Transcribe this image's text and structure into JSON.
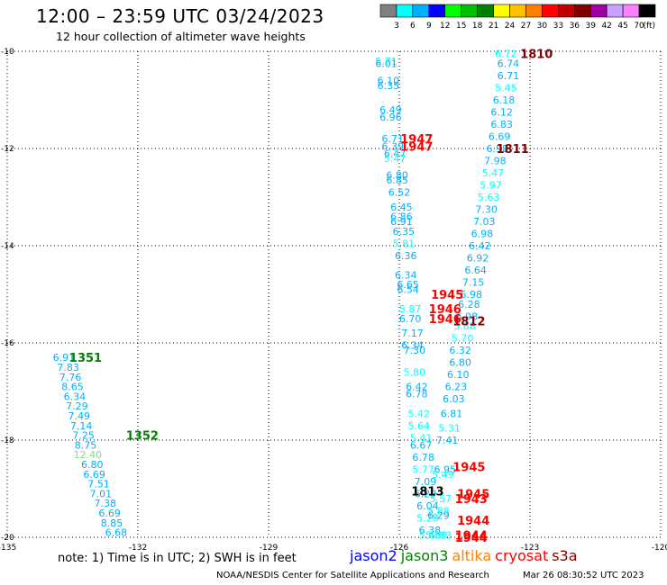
{
  "header": {
    "title": "12:00 – 23:59 UTC 03/24/2023",
    "subtitle": "12 hour collection of altimeter wave heights"
  },
  "colorbar": {
    "unit": "(ft)",
    "bins": [
      {
        "label": "3",
        "color": "#808080"
      },
      {
        "label": "6",
        "color": "#00ffff"
      },
      {
        "label": "9",
        "color": "#00b0ff"
      },
      {
        "label": "12",
        "color": "#0000ff"
      },
      {
        "label": "15",
        "color": "#00ff00"
      },
      {
        "label": "18",
        "color": "#00c000"
      },
      {
        "label": "21",
        "color": "#008000"
      },
      {
        "label": "24",
        "color": "#ffff00"
      },
      {
        "label": "27",
        "color": "#ffc000"
      },
      {
        "label": "30",
        "color": "#ff8000"
      },
      {
        "label": "33",
        "color": "#ff0000"
      },
      {
        "label": "36",
        "color": "#c00000"
      },
      {
        "label": "39",
        "color": "#800000"
      },
      {
        "label": "42",
        "color": "#a000a0"
      },
      {
        "label": "45",
        "color": "#c8a0ff"
      },
      {
        "label": "70",
        "color": "#ff80ff"
      },
      {
        "label": "",
        "color": "#000000"
      }
    ]
  },
  "footer": {
    "note": "note:  1) Time is in UTC;  2) SWH is in feet",
    "satellites": [
      {
        "name": "jason2",
        "color": "#0000ff"
      },
      {
        "name": "jason3",
        "color": "#008000"
      },
      {
        "name": "altika",
        "color": "#ff8000"
      },
      {
        "name": "cryosat",
        "color": "#ff0000"
      },
      {
        "name": "s3a",
        "color": "#800000"
      }
    ],
    "credit": "NOAA/NESDIS Center for Satellite Applications and Research",
    "timestamp": "Mar 26 08:30:52 UTC 2023"
  },
  "chart_data": {
    "type": "scatter",
    "xlim": [
      -135,
      -120
    ],
    "ylim": [
      -20,
      -10
    ],
    "xticks": [
      -135,
      -132,
      -129,
      -126,
      -123,
      -120
    ],
    "xtick_labels": [
      "-135",
      "-132",
      "-129",
      "-126",
      "-123",
      "-120"
    ],
    "yticks": [
      -10,
      -12,
      -14,
      -16,
      -18,
      -20
    ],
    "ytick_labels": [
      "-10",
      "-12",
      "-14",
      "-16",
      "-18",
      "-20"
    ],
    "grid": true,
    "wave_heights": [
      {
        "x": -133.7,
        "y": -16.3,
        "value": "6.91",
        "color": "#00b0ff"
      },
      {
        "x": -133.6,
        "y": -16.5,
        "value": "7.83",
        "color": "#00b0ff"
      },
      {
        "x": -133.55,
        "y": -16.7,
        "value": "7.76",
        "color": "#00b0ff"
      },
      {
        "x": -133.5,
        "y": -16.9,
        "value": "8.65",
        "color": "#00b0ff"
      },
      {
        "x": -133.45,
        "y": -17.1,
        "value": "6.34",
        "color": "#00b0ff"
      },
      {
        "x": -133.4,
        "y": -17.3,
        "value": "7.29",
        "color": "#00b0ff"
      },
      {
        "x": -133.35,
        "y": -17.5,
        "value": "7.49",
        "color": "#00b0ff"
      },
      {
        "x": -133.3,
        "y": -17.7,
        "value": "7.14",
        "color": "#00b0ff"
      },
      {
        "x": -133.25,
        "y": -17.9,
        "value": "7.25",
        "color": "#00b0ff"
      },
      {
        "x": -133.2,
        "y": -18.1,
        "value": "8.75",
        "color": "#00b0ff"
      },
      {
        "x": -133.15,
        "y": -18.3,
        "value": "12.40",
        "color": "#80e080"
      },
      {
        "x": -133.05,
        "y": -18.5,
        "value": "6.80",
        "color": "#00b0ff"
      },
      {
        "x": -133.0,
        "y": -18.7,
        "value": "6.69",
        "color": "#00b0ff"
      },
      {
        "x": -132.9,
        "y": -18.9,
        "value": "7.51",
        "color": "#00b0ff"
      },
      {
        "x": -132.85,
        "y": -19.1,
        "value": "7.01",
        "color": "#00b0ff"
      },
      {
        "x": -132.75,
        "y": -19.3,
        "value": "7.38",
        "color": "#00b0ff"
      },
      {
        "x": -132.65,
        "y": -19.5,
        "value": "6.69",
        "color": "#00b0ff"
      },
      {
        "x": -132.6,
        "y": -19.7,
        "value": "8.85",
        "color": "#00b0ff"
      },
      {
        "x": -132.5,
        "y": -19.9,
        "value": "6.68",
        "color": "#00b0ff"
      },
      {
        "x": -126.3,
        "y": -10.2,
        "value": "5.71",
        "color": "#00ffff"
      },
      {
        "x": -126.3,
        "y": -10.25,
        "value": "6.01",
        "color": "#00b0ff"
      },
      {
        "x": -126.25,
        "y": -10.6,
        "value": "6.10",
        "color": "#00b0ff"
      },
      {
        "x": -126.25,
        "y": -10.7,
        "value": "6.35",
        "color": "#00b0ff"
      },
      {
        "x": -126.2,
        "y": -11.2,
        "value": "6.49",
        "color": "#00b0ff"
      },
      {
        "x": -126.2,
        "y": -11.35,
        "value": "6.96",
        "color": "#00b0ff"
      },
      {
        "x": -126.15,
        "y": -11.8,
        "value": "6.71",
        "color": "#00b0ff"
      },
      {
        "x": -126.15,
        "y": -11.95,
        "value": "6.39",
        "color": "#00b0ff"
      },
      {
        "x": -126.1,
        "y": -12.1,
        "value": "6.47",
        "color": "#00b0ff"
      },
      {
        "x": -126.1,
        "y": -12.2,
        "value": "5.47",
        "color": "#00ffff"
      },
      {
        "x": -126.05,
        "y": -12.55,
        "value": "6.80",
        "color": "#00b0ff"
      },
      {
        "x": -126.05,
        "y": -12.65,
        "value": "6.85",
        "color": "#00b0ff"
      },
      {
        "x": -126.0,
        "y": -12.9,
        "value": "6.52",
        "color": "#00b0ff"
      },
      {
        "x": -125.95,
        "y": -13.2,
        "value": "6.45",
        "color": "#00b0ff"
      },
      {
        "x": -125.95,
        "y": -13.4,
        "value": "6.86",
        "color": "#00b0ff"
      },
      {
        "x": -125.95,
        "y": -13.5,
        "value": "6.91",
        "color": "#00b0ff"
      },
      {
        "x": -125.9,
        "y": -13.7,
        "value": "6.35",
        "color": "#00b0ff"
      },
      {
        "x": -125.9,
        "y": -13.95,
        "value": "5.81",
        "color": "#00ffff"
      },
      {
        "x": -125.85,
        "y": -14.2,
        "value": "6.36",
        "color": "#00b0ff"
      },
      {
        "x": -125.85,
        "y": -14.6,
        "value": "6.34",
        "color": "#00b0ff"
      },
      {
        "x": -125.8,
        "y": -14.8,
        "value": "6.65",
        "color": "#00b0ff"
      },
      {
        "x": -125.8,
        "y": -14.9,
        "value": "6.54",
        "color": "#00b0ff"
      },
      {
        "x": -125.75,
        "y": -15.3,
        "value": "5.87",
        "color": "#00ffff"
      },
      {
        "x": -125.75,
        "y": -15.5,
        "value": "6.70",
        "color": "#00b0ff"
      },
      {
        "x": -125.7,
        "y": -15.8,
        "value": "7.17",
        "color": "#00b0ff"
      },
      {
        "x": -125.7,
        "y": -16.05,
        "value": "6.34",
        "color": "#00b0ff"
      },
      {
        "x": -125.65,
        "y": -16.15,
        "value": "7.30",
        "color": "#00b0ff"
      },
      {
        "x": -125.65,
        "y": -16.6,
        "value": "5.80",
        "color": "#00ffff"
      },
      {
        "x": -125.6,
        "y": -16.9,
        "value": "6.42",
        "color": "#00b0ff"
      },
      {
        "x": -125.6,
        "y": -17.05,
        "value": "6.78",
        "color": "#00b0ff"
      },
      {
        "x": -125.55,
        "y": -17.45,
        "value": "5.42",
        "color": "#00ffff"
      },
      {
        "x": -125.55,
        "y": -17.7,
        "value": "5.64",
        "color": "#00ffff"
      },
      {
        "x": -125.5,
        "y": -17.95,
        "value": "5.41",
        "color": "#00ffff"
      },
      {
        "x": -125.5,
        "y": -18.1,
        "value": "6.67",
        "color": "#00b0ff"
      },
      {
        "x": -125.45,
        "y": -18.35,
        "value": "6.78",
        "color": "#00b0ff"
      },
      {
        "x": -125.45,
        "y": -18.6,
        "value": "5.77",
        "color": "#00ffff"
      },
      {
        "x": -125.4,
        "y": -18.85,
        "value": "7.09",
        "color": "#00b0ff"
      },
      {
        "x": -125.4,
        "y": -19.1,
        "value": "6.29",
        "color": "#00b0ff"
      },
      {
        "x": -125.35,
        "y": -19.35,
        "value": "6.04",
        "color": "#00b0ff"
      },
      {
        "x": -125.35,
        "y": -19.6,
        "value": "5.28",
        "color": "#00ffff"
      },
      {
        "x": -125.3,
        "y": -19.85,
        "value": "6.38",
        "color": "#00b0ff"
      },
      {
        "x": -125.3,
        "y": -19.95,
        "value": "5.43",
        "color": "#00ffff"
      },
      {
        "x": -123.55,
        "y": -10.05,
        "value": "6.72",
        "color": "#00ffff"
      },
      {
        "x": -123.5,
        "y": -10.25,
        "value": "6.74",
        "color": "#00b0ff"
      },
      {
        "x": -123.5,
        "y": -10.5,
        "value": "6.71",
        "color": "#00b0ff"
      },
      {
        "x": -123.55,
        "y": -10.75,
        "value": "5.45",
        "color": "#00ffff"
      },
      {
        "x": -123.6,
        "y": -11.0,
        "value": "6.18",
        "color": "#00b0ff"
      },
      {
        "x": -123.65,
        "y": -11.25,
        "value": "6.12",
        "color": "#00b0ff"
      },
      {
        "x": -123.65,
        "y": -11.5,
        "value": "6.83",
        "color": "#00b0ff"
      },
      {
        "x": -123.7,
        "y": -11.75,
        "value": "6.69",
        "color": "#00b0ff"
      },
      {
        "x": -123.75,
        "y": -12.0,
        "value": "6.98",
        "color": "#00b0ff"
      },
      {
        "x": -123.8,
        "y": -12.25,
        "value": "7.98",
        "color": "#00b0ff"
      },
      {
        "x": -123.85,
        "y": -12.5,
        "value": "5.47",
        "color": "#00ffff"
      },
      {
        "x": -123.9,
        "y": -12.75,
        "value": "5.97",
        "color": "#00ffff"
      },
      {
        "x": -123.95,
        "y": -13.0,
        "value": "5.63",
        "color": "#00ffff"
      },
      {
        "x": -124.0,
        "y": -13.25,
        "value": "7.30",
        "color": "#00b0ff"
      },
      {
        "x": -124.05,
        "y": -13.5,
        "value": "7.03",
        "color": "#00b0ff"
      },
      {
        "x": -124.1,
        "y": -13.75,
        "value": "6.98",
        "color": "#00b0ff"
      },
      {
        "x": -124.15,
        "y": -14.0,
        "value": "6.42",
        "color": "#00b0ff"
      },
      {
        "x": -124.2,
        "y": -14.25,
        "value": "6.92",
        "color": "#00b0ff"
      },
      {
        "x": -124.25,
        "y": -14.5,
        "value": "6.64",
        "color": "#00b0ff"
      },
      {
        "x": -124.3,
        "y": -14.75,
        "value": "7.15",
        "color": "#00b0ff"
      },
      {
        "x": -124.35,
        "y": -15.0,
        "value": "6.98",
        "color": "#00b0ff"
      },
      {
        "x": -124.4,
        "y": -15.2,
        "value": "6.28",
        "color": "#00b0ff"
      },
      {
        "x": -124.45,
        "y": -15.45,
        "value": "6.98",
        "color": "#00b0ff"
      },
      {
        "x": -124.5,
        "y": -15.65,
        "value": "5.88",
        "color": "#00ffff"
      },
      {
        "x": -124.55,
        "y": -15.9,
        "value": "5.70",
        "color": "#00ffff"
      },
      {
        "x": -124.6,
        "y": -16.15,
        "value": "6.32",
        "color": "#00b0ff"
      },
      {
        "x": -124.6,
        "y": -16.4,
        "value": "6.80",
        "color": "#00b0ff"
      },
      {
        "x": -124.65,
        "y": -16.65,
        "value": "6.10",
        "color": "#00b0ff"
      },
      {
        "x": -124.7,
        "y": -16.9,
        "value": "6.23",
        "color": "#00b0ff"
      },
      {
        "x": -124.75,
        "y": -17.15,
        "value": "6.03",
        "color": "#00b0ff"
      },
      {
        "x": -124.8,
        "y": -17.45,
        "value": "6.81",
        "color": "#00b0ff"
      },
      {
        "x": -124.85,
        "y": -17.75,
        "value": "5.31",
        "color": "#00ffff"
      },
      {
        "x": -124.9,
        "y": -18.0,
        "value": "7.41",
        "color": "#00b0ff"
      },
      {
        "x": -124.95,
        "y": -18.6,
        "value": "6.95",
        "color": "#00b0ff"
      },
      {
        "x": -125.0,
        "y": -18.7,
        "value": "5.49",
        "color": "#00ffff"
      },
      {
        "x": -125.05,
        "y": -19.2,
        "value": "5.57",
        "color": "#00ffff"
      },
      {
        "x": -125.1,
        "y": -19.45,
        "value": "5.88",
        "color": "#00ffff"
      },
      {
        "x": -125.1,
        "y": -19.55,
        "value": "6.29",
        "color": "#00b0ff"
      },
      {
        "x": -125.15,
        "y": -19.95,
        "value": "5.60",
        "color": "#00ffff"
      },
      {
        "x": -125.05,
        "y": -19.95,
        "value": "5.83",
        "color": "#00ffff"
      }
    ],
    "pass_times": [
      {
        "x": -133.2,
        "y": -16.3,
        "value": "1351",
        "color": "#008000"
      },
      {
        "x": -131.9,
        "y": -17.9,
        "value": "1352",
        "color": "#008000"
      },
      {
        "x": -122.85,
        "y": -10.05,
        "value": "1810",
        "color": "#800000"
      },
      {
        "x": -123.4,
        "y": -12.0,
        "value": "1811",
        "color": "#800000"
      },
      {
        "x": -124.4,
        "y": -15.55,
        "value": "1812",
        "color": "#800000"
      },
      {
        "x": -125.35,
        "y": -19.05,
        "value": "1813",
        "color": "#000000"
      },
      {
        "x": -125.6,
        "y": -11.8,
        "value": "1947",
        "color": "#ff0000"
      },
      {
        "x": -125.6,
        "y": -11.95,
        "value": "1947",
        "color": "#ff0000"
      },
      {
        "x": -124.9,
        "y": -15.0,
        "value": "1945",
        "color": "#ff0000"
      },
      {
        "x": -124.95,
        "y": -15.3,
        "value": "1946",
        "color": "#ff0000"
      },
      {
        "x": -124.95,
        "y": -15.5,
        "value": "1946",
        "color": "#ff0000"
      },
      {
        "x": -124.4,
        "y": -18.55,
        "value": "1945",
        "color": "#ff0000"
      },
      {
        "x": -124.3,
        "y": -19.1,
        "value": "1945",
        "color": "#ff0000"
      },
      {
        "x": -124.35,
        "y": -19.2,
        "value": "1943",
        "color": "#ff0000"
      },
      {
        "x": -124.3,
        "y": -19.65,
        "value": "1944",
        "color": "#ff0000"
      },
      {
        "x": -124.35,
        "y": -19.95,
        "value": "1944",
        "color": "#ff0000"
      },
      {
        "x": -124.35,
        "y": -20.0,
        "value": "1944",
        "color": "#ff0000"
      }
    ]
  }
}
